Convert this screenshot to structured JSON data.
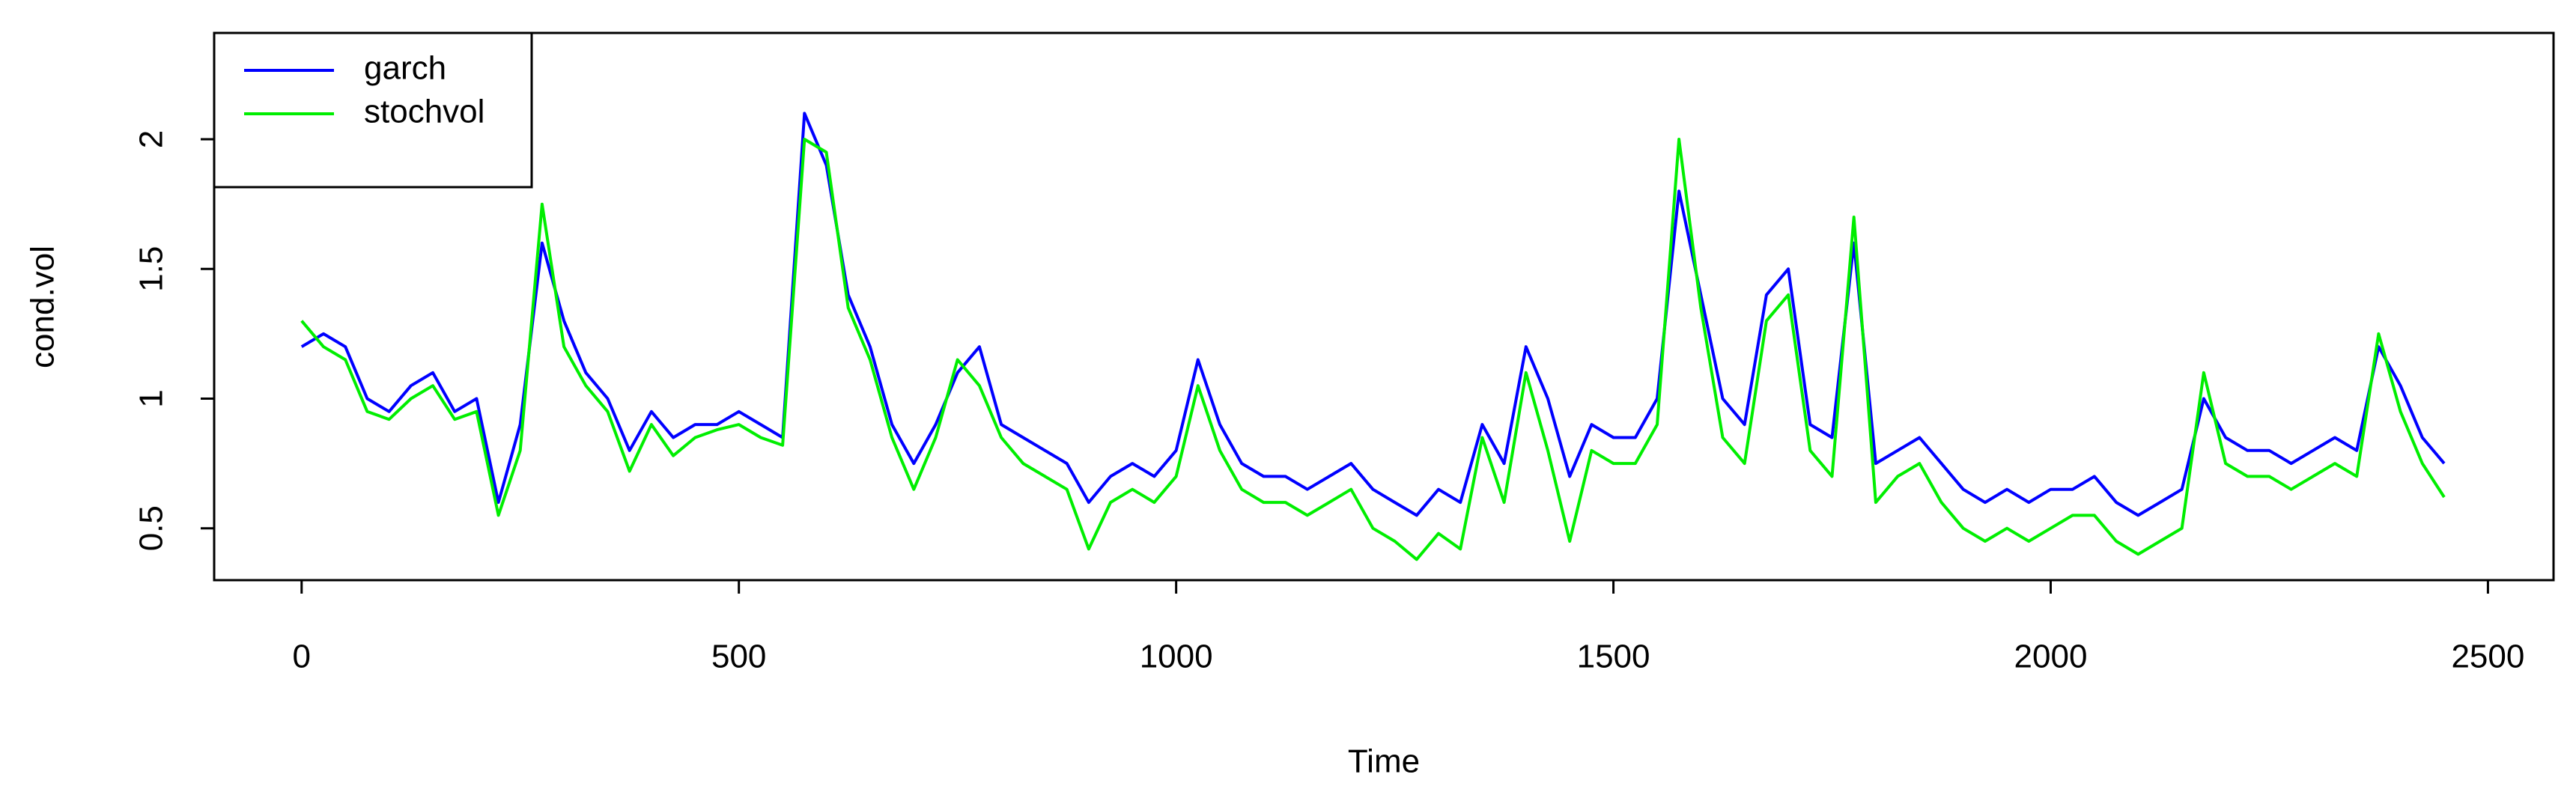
{
  "chart_data": {
    "type": "line",
    "x_label": "Time",
    "y_label": "cond.vol",
    "x": [
      0,
      25,
      50,
      75,
      100,
      125,
      150,
      175,
      200,
      225,
      250,
      275,
      300,
      325,
      350,
      375,
      400,
      425,
      450,
      475,
      500,
      525,
      550,
      575,
      600,
      625,
      650,
      675,
      700,
      725,
      750,
      775,
      800,
      825,
      850,
      875,
      900,
      925,
      950,
      975,
      1000,
      1025,
      1050,
      1075,
      1100,
      1125,
      1150,
      1175,
      1200,
      1225,
      1250,
      1275,
      1300,
      1325,
      1350,
      1375,
      1400,
      1425,
      1450,
      1475,
      1500,
      1525,
      1550,
      1575,
      1600,
      1625,
      1650,
      1675,
      1700,
      1725,
      1750,
      1775,
      1800,
      1825,
      1850,
      1875,
      1900,
      1925,
      1950,
      1975,
      2000,
      2025,
      2050,
      2075,
      2100,
      2125,
      2150,
      2175,
      2200,
      2225,
      2250,
      2275,
      2300,
      2325,
      2350,
      2375,
      2400,
      2425,
      2450
    ],
    "series": [
      {
        "name": "garch",
        "color": "#0000ff",
        "values": [
          1.2,
          1.25,
          1.2,
          1.0,
          0.95,
          1.05,
          1.1,
          0.95,
          1.0,
          0.6,
          0.9,
          1.6,
          1.3,
          1.1,
          1.0,
          0.8,
          0.95,
          0.85,
          0.9,
          0.9,
          0.95,
          0.9,
          0.85,
          2.1,
          1.9,
          1.4,
          1.2,
          0.9,
          0.75,
          0.9,
          1.1,
          1.2,
          0.9,
          0.85,
          0.8,
          0.75,
          0.6,
          0.7,
          0.75,
          0.7,
          0.8,
          1.15,
          0.9,
          0.75,
          0.7,
          0.7,
          0.65,
          0.7,
          0.75,
          0.65,
          0.6,
          0.55,
          0.65,
          0.6,
          0.9,
          0.75,
          1.2,
          1.0,
          0.7,
          0.9,
          0.85,
          0.85,
          1.0,
          1.8,
          1.4,
          1.0,
          0.9,
          1.4,
          1.5,
          0.9,
          0.85,
          1.6,
          0.75,
          0.8,
          0.85,
          0.75,
          0.65,
          0.6,
          0.65,
          0.6,
          0.65,
          0.65,
          0.7,
          0.6,
          0.55,
          0.6,
          0.65,
          1.0,
          0.85,
          0.8,
          0.8,
          0.75,
          0.8,
          0.85,
          0.8,
          1.2,
          1.05,
          0.85,
          0.75
        ]
      },
      {
        "name": "stochvol",
        "color": "#00ee00",
        "values": [
          1.3,
          1.2,
          1.15,
          0.95,
          0.92,
          1.0,
          1.05,
          0.92,
          0.95,
          0.55,
          0.8,
          1.75,
          1.2,
          1.05,
          0.95,
          0.72,
          0.9,
          0.78,
          0.85,
          0.88,
          0.9,
          0.85,
          0.82,
          2.0,
          1.95,
          1.35,
          1.15,
          0.85,
          0.65,
          0.85,
          1.15,
          1.05,
          0.85,
          0.75,
          0.7,
          0.65,
          0.42,
          0.6,
          0.65,
          0.6,
          0.7,
          1.05,
          0.8,
          0.65,
          0.6,
          0.6,
          0.55,
          0.6,
          0.65,
          0.5,
          0.45,
          0.38,
          0.48,
          0.42,
          0.85,
          0.6,
          1.1,
          0.8,
          0.45,
          0.8,
          0.75,
          0.75,
          0.9,
          2.0,
          1.35,
          0.85,
          0.75,
          1.3,
          1.4,
          0.8,
          0.7,
          1.7,
          0.6,
          0.7,
          0.75,
          0.6,
          0.5,
          0.45,
          0.5,
          0.45,
          0.5,
          0.55,
          0.55,
          0.45,
          0.4,
          0.45,
          0.5,
          1.1,
          0.75,
          0.7,
          0.7,
          0.65,
          0.7,
          0.75,
          0.7,
          1.25,
          0.95,
          0.75,
          0.62
        ]
      }
    ],
    "xlim": [
      -100,
      2575
    ],
    "ylim": [
      0.3,
      2.41
    ],
    "xticks": [
      0,
      500,
      1000,
      1500,
      2000,
      2500
    ],
    "yticks": [
      0.5,
      1.0,
      1.5,
      2.0
    ],
    "legend": "topleft",
    "grid": false
  }
}
